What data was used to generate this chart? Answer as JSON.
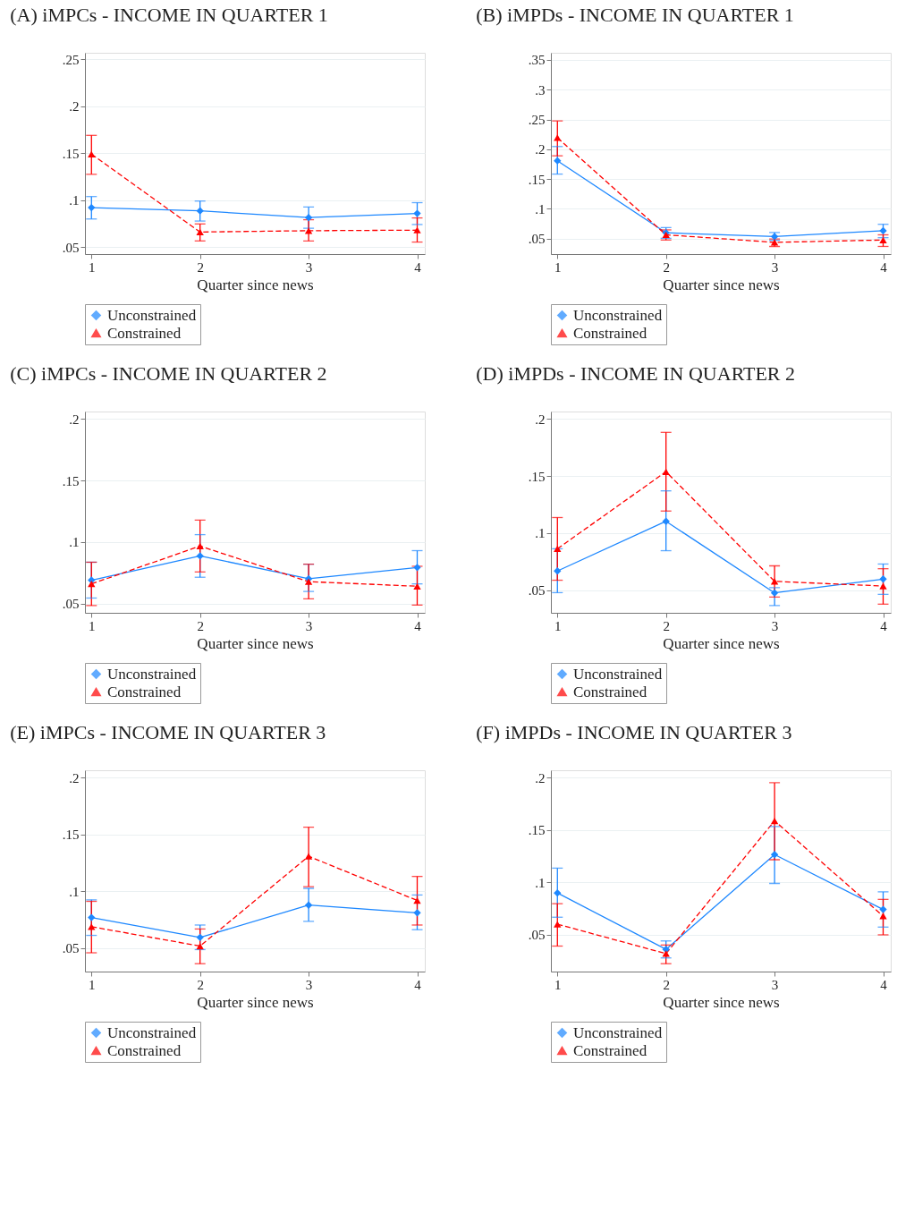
{
  "chart_data": [
    {
      "type": "line",
      "title": "(A) iMPCs - INCOME IN QUARTER 1",
      "xlabel": "Quarter since news",
      "x": [
        1,
        2,
        3,
        4
      ],
      "xlim": [
        0.94,
        4.07
      ],
      "xticks": [
        1,
        2,
        3,
        4
      ],
      "ylim": [
        0.0425,
        0.257
      ],
      "yticks": [
        {
          "value": 0.05,
          "label": ".05"
        },
        {
          "value": 0.1,
          "label": ".1"
        },
        {
          "value": 0.15,
          "label": ".15"
        },
        {
          "value": 0.2,
          "label": ".2"
        },
        {
          "value": 0.25,
          "label": ".25"
        }
      ],
      "grid": "y",
      "legend": "bottom",
      "series": [
        {
          "name": "Unconstrained",
          "color": "#1e88ff",
          "marker": "diamond",
          "line_style": "solid",
          "values": [
            0.092,
            0.0886,
            0.0814,
            0.0858
          ],
          "errors": [
            [
              0.0799,
              0.1038
            ],
            [
              0.0777,
              0.099
            ],
            [
              0.07,
              0.0926
            ],
            [
              0.074,
              0.0973
            ]
          ]
        },
        {
          "name": "Constrained",
          "color": "#ff0000",
          "marker": "triangle",
          "line_style": "dashed",
          "values": [
            0.149,
            0.066,
            0.0674,
            0.068
          ],
          "errors": [
            [
              0.1275,
              0.169
            ],
            [
              0.0565,
              0.0746
            ],
            [
              0.0565,
              0.079
            ],
            [
              0.0553,
              0.081
            ]
          ]
        }
      ]
    },
    {
      "type": "line",
      "title": "(B) iMPDs - INCOME IN QUARTER 1",
      "xlabel": "Quarter since news",
      "x": [
        1,
        2,
        3,
        4
      ],
      "xlim": [
        0.94,
        4.07
      ],
      "xticks": [
        1,
        2,
        3,
        4
      ],
      "ylim": [
        0.024,
        0.362
      ],
      "yticks": [
        {
          "value": 0.05,
          "label": ".05"
        },
        {
          "value": 0.1,
          "label": ".1"
        },
        {
          "value": 0.15,
          "label": ".15"
        },
        {
          "value": 0.2,
          "label": ".2"
        },
        {
          "value": 0.25,
          "label": ".25"
        },
        {
          "value": 0.3,
          "label": ".3"
        },
        {
          "value": 0.35,
          "label": ".35"
        }
      ],
      "grid": "y",
      "legend": "bottom",
      "series": [
        {
          "name": "Unconstrained",
          "color": "#1e88ff",
          "marker": "diamond",
          "line_style": "solid",
          "values": [
            0.1807,
            0.0598,
            0.0534,
            0.0632
          ],
          "errors": [
            [
              0.1583,
              0.2046
            ],
            [
              0.0505,
              0.0685
            ],
            [
              0.047,
              0.0602
            ],
            [
              0.0515,
              0.074
            ]
          ]
        },
        {
          "name": "Constrained",
          "color": "#ff0000",
          "marker": "triangle",
          "line_style": "dashed",
          "values": [
            0.2193,
            0.0563,
            0.0437,
            0.0476
          ],
          "errors": [
            [
              0.189,
              0.2476
            ],
            [
              0.0476,
              0.0646
            ],
            [
              0.0368,
              0.0495
            ],
            [
              0.0368,
              0.0563
            ]
          ]
        }
      ]
    },
    {
      "type": "line",
      "title": "(C) iMPCs - INCOME IN QUARTER 2",
      "xlabel": "Quarter since news",
      "x": [
        1,
        2,
        3,
        4
      ],
      "xlim": [
        0.94,
        4.07
      ],
      "xticks": [
        1,
        2,
        3,
        4
      ],
      "ylim": [
        0.0425,
        0.206
      ],
      "yticks": [
        {
          "value": 0.05,
          "label": ".05"
        },
        {
          "value": 0.1,
          "label": ".1"
        },
        {
          "value": 0.15,
          "label": ".15"
        },
        {
          "value": 0.2,
          "label": ".2"
        }
      ],
      "grid": "y",
      "legend": "bottom",
      "series": [
        {
          "name": "Unconstrained",
          "color": "#1e88ff",
          "marker": "diamond",
          "line_style": "solid",
          "values": [
            0.069,
            0.0887,
            0.0702,
            0.0793
          ],
          "errors": [
            [
              0.0545,
              0.0836
            ],
            [
              0.0714,
              0.106
            ],
            [
              0.0599,
              0.082
            ],
            [
              0.066,
              0.093
            ]
          ]
        },
        {
          "name": "Constrained",
          "color": "#ff0000",
          "marker": "triangle",
          "line_style": "dashed",
          "values": [
            0.066,
            0.0967,
            0.0678,
            0.0641
          ],
          "errors": [
            [
              0.0484,
              0.0836
            ],
            [
              0.0757,
              0.1178
            ],
            [
              0.0538,
              0.082
            ],
            [
              0.0488,
              0.0803
            ]
          ]
        }
      ]
    },
    {
      "type": "line",
      "title": "(D) iMPDs - INCOME IN QUARTER 2",
      "xlabel": "Quarter since news",
      "x": [
        1,
        2,
        3,
        4
      ],
      "xlim": [
        0.94,
        4.07
      ],
      "xticks": [
        1,
        2,
        3,
        4
      ],
      "ylim": [
        0.03,
        0.2066
      ],
      "yticks": [
        {
          "value": 0.05,
          "label": ".05"
        },
        {
          "value": 0.1,
          "label": ".1"
        },
        {
          "value": 0.15,
          "label": ".15"
        },
        {
          "value": 0.2,
          "label": ".2"
        }
      ],
      "grid": "y",
      "legend": "bottom",
      "series": [
        {
          "name": "Unconstrained",
          "color": "#1e88ff",
          "marker": "diamond",
          "line_style": "solid",
          "values": [
            0.0667,
            0.1103,
            0.0475,
            0.0596
          ],
          "errors": [
            [
              0.0477,
              0.0862
            ],
            [
              0.0845,
              0.137
            ],
            [
              0.0363,
              0.052
            ],
            [
              0.0462,
              0.0728
            ]
          ]
        },
        {
          "name": "Constrained",
          "color": "#ff0000",
          "marker": "triangle",
          "line_style": "dashed",
          "values": [
            0.0862,
            0.1538,
            0.0576,
            0.0535
          ],
          "errors": [
            [
              0.0586,
              0.1136
            ],
            [
              0.1193,
              0.1883
            ],
            [
              0.0439,
              0.0712
            ],
            [
              0.0376,
              0.0687
            ]
          ]
        }
      ]
    },
    {
      "type": "line",
      "title": "(E) iMPCs - INCOME IN QUARTER 3",
      "xlabel": "Quarter since news",
      "x": [
        1,
        2,
        3,
        4
      ],
      "xlim": [
        0.94,
        4.07
      ],
      "xticks": [
        1,
        2,
        3,
        4
      ],
      "ylim": [
        0.0294,
        0.2063
      ],
      "yticks": [
        {
          "value": 0.05,
          "label": ".05"
        },
        {
          "value": 0.1,
          "label": ".1"
        },
        {
          "value": 0.15,
          "label": ".15"
        },
        {
          "value": 0.2,
          "label": ".2"
        }
      ],
      "grid": "y",
      "legend": "bottom",
      "series": [
        {
          "name": "Unconstrained",
          "color": "#1e88ff",
          "marker": "diamond",
          "line_style": "solid",
          "values": [
            0.0769,
            0.0594,
            0.0878,
            0.081
          ],
          "errors": [
            [
              0.0612,
              0.0924
            ],
            [
              0.0487,
              0.0703
            ],
            [
              0.0736,
              0.1025
            ],
            [
              0.0662,
              0.0967
            ]
          ]
        },
        {
          "name": "Constrained",
          "color": "#ff0000",
          "marker": "triangle",
          "line_style": "dashed",
          "values": [
            0.0688,
            0.0518,
            0.1307,
            0.0919
          ],
          "errors": [
            [
              0.0459,
              0.0911
            ],
            [
              0.0363,
              0.0668
            ],
            [
              0.104,
              0.1563
            ],
            [
              0.0703,
              0.113
            ]
          ]
        }
      ]
    },
    {
      "type": "line",
      "title": "(F) iMPDs - INCOME IN QUARTER 3",
      "xlabel": "Quarter since news",
      "x": [
        1,
        2,
        3,
        4
      ],
      "xlim": [
        0.94,
        4.07
      ],
      "xticks": [
        1,
        2,
        3,
        4
      ],
      "ylim": [
        0.015,
        0.2069
      ],
      "yticks": [
        {
          "value": 0.05,
          "label": ".05"
        },
        {
          "value": 0.1,
          "label": ".1"
        },
        {
          "value": 0.15,
          "label": ".15"
        },
        {
          "value": 0.2,
          "label": ".2"
        }
      ],
      "grid": "y",
      "legend": "bottom",
      "series": [
        {
          "name": "Unconstrained",
          "color": "#1e88ff",
          "marker": "diamond",
          "line_style": "solid",
          "values": [
            0.0899,
            0.0362,
            0.1265,
            0.0742
          ],
          "errors": [
            [
              0.0668,
              0.1136
            ],
            [
              0.028,
              0.0442
            ],
            [
              0.099,
              0.1532
            ],
            [
              0.0574,
              0.091
            ]
          ]
        },
        {
          "name": "Constrained",
          "color": "#ff0000",
          "marker": "triangle",
          "line_style": "dashed",
          "values": [
            0.0602,
            0.0321,
            0.1587,
            0.0679
          ],
          "errors": [
            [
              0.0393,
              0.0797
            ],
            [
              0.0225,
              0.0403
            ],
            [
              0.1216,
              0.195
            ],
            [
              0.05,
              0.0838
            ]
          ]
        }
      ]
    }
  ]
}
